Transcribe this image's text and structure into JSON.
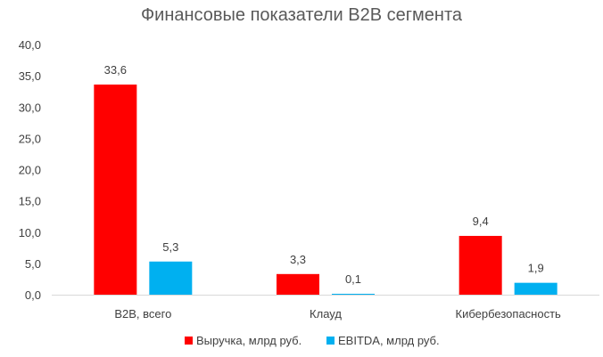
{
  "chart_data": {
    "type": "bar",
    "title": "Финансовые показатели B2B сегмента",
    "categories": [
      "B2B, всего",
      "Клауд",
      "Кибербезопасность"
    ],
    "series": [
      {
        "name": "Выручка, млрд руб.",
        "values": [
          33.6,
          3.3,
          9.4
        ],
        "labels": [
          "33,6",
          "3,3",
          "9,4"
        ],
        "color": "#FF0000"
      },
      {
        "name": "EBITDA, млрд руб.",
        "values": [
          5.3,
          0.1,
          1.9
        ],
        "labels": [
          "5,3",
          "0,1",
          "1,9"
        ],
        "color": "#00B0F0"
      }
    ],
    "ylim": [
      0,
      40
    ],
    "yticks": [
      0,
      5,
      10,
      15,
      20,
      25,
      30,
      35,
      40
    ],
    "ytick_labels": [
      "0,0",
      "5,0",
      "10,0",
      "15,0",
      "20,0",
      "25,0",
      "30,0",
      "35,0",
      "40,0"
    ],
    "xlabel": "",
    "ylabel": "",
    "grid": false,
    "legend_position": "bottom"
  }
}
